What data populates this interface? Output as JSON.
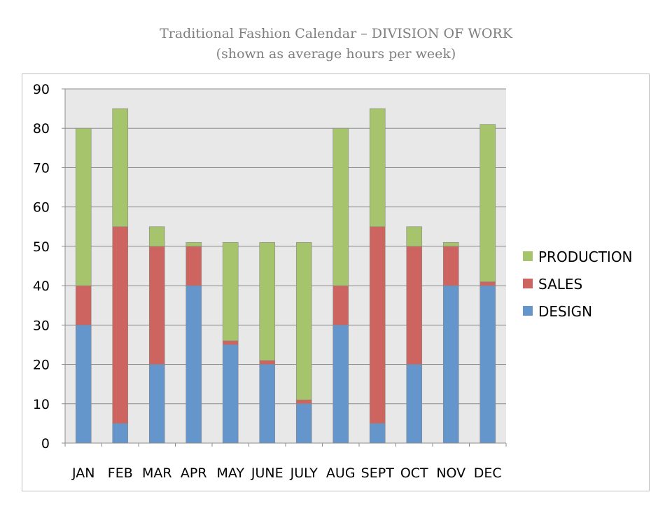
{
  "chart_data": {
    "type": "bar",
    "stacked": true,
    "title": "Traditional Fashion Calendar – DIVISION OF WORK",
    "subtitle": "(shown as average hours per week)",
    "categories": [
      "JAN",
      "FEB",
      "MAR",
      "APR",
      "MAY",
      "JUNE",
      "JULY",
      "AUG",
      "SEPT",
      "OCT",
      "NOV",
      "DEC"
    ],
    "series": [
      {
        "name": "DESIGN",
        "color": "#6495cb",
        "values": [
          30,
          5,
          20,
          40,
          25,
          20,
          10,
          30,
          5,
          20,
          40,
          40
        ]
      },
      {
        "name": "SALES",
        "color": "#ce6460",
        "values": [
          10,
          50,
          30,
          10,
          1,
          1,
          1,
          10,
          50,
          30,
          10,
          1
        ]
      },
      {
        "name": "PRODUCTION",
        "color": "#a6c46c",
        "values": [
          40,
          30,
          5,
          1,
          25,
          30,
          40,
          40,
          30,
          5,
          1,
          40
        ]
      }
    ],
    "ylim": [
      0,
      90
    ],
    "yticks": [
      0,
      10,
      20,
      30,
      40,
      50,
      60,
      70,
      80,
      90
    ],
    "grid": true,
    "legend": {
      "position": "right",
      "order": [
        "PRODUCTION",
        "SALES",
        "DESIGN"
      ]
    },
    "plot_background": "#e8e8e8"
  }
}
